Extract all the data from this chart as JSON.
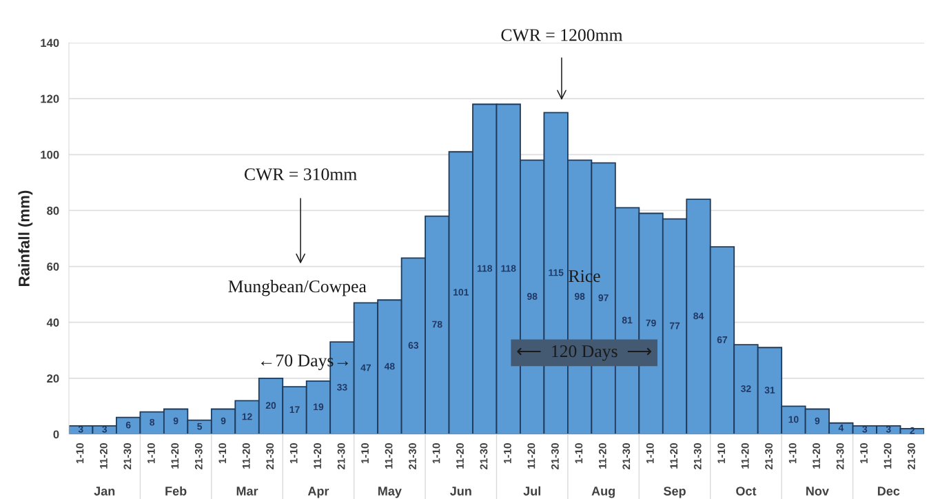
{
  "chart_data": {
    "type": "bar",
    "ylabel": "Rainfall (mm)",
    "categories": [
      "1-10",
      "11-20",
      "21-30",
      "1-10",
      "11-20",
      "21-30",
      "1-10",
      "11-20",
      "21-30",
      "1-10",
      "11-20",
      "21-30",
      "1-10",
      "11-20",
      "21-30",
      "1-10",
      "11-20",
      "21-30",
      "1-10",
      "11-20",
      "21-30",
      "1-10",
      "11-20",
      "21-30",
      "1-10",
      "11-20",
      "21-30",
      "1-10",
      "11-20",
      "21-30",
      "1-10",
      "11-20",
      "21-30",
      "1-10",
      "11-20",
      "21-30"
    ],
    "values": [
      3,
      3,
      6,
      8,
      9,
      5,
      9,
      12,
      20,
      17,
      19,
      33,
      47,
      48,
      63,
      78,
      101,
      118,
      118,
      98,
      115,
      98,
      97,
      81,
      79,
      77,
      84,
      67,
      32,
      31,
      10,
      9,
      4,
      3,
      3,
      2
    ],
    "color": "#5b9bd5",
    "ylim": [
      0,
      140
    ],
    "yticks": [
      0,
      20,
      40,
      60,
      80,
      100,
      120,
      140
    ],
    "grid": "y",
    "data_labels": true,
    "annotations": [
      "CWR = 310mm",
      "Mungbean/Cowpea",
      "←70 Days→",
      "CWR = 1200mm",
      "Rice",
      "⟵  120 Days  ⟶",
      "Jan",
      "Feb",
      "Mar",
      "Apr",
      "May",
      "Jun",
      "Jul",
      "Aug",
      "Sep",
      "Oct",
      "Nov",
      "Dec"
    ]
  }
}
